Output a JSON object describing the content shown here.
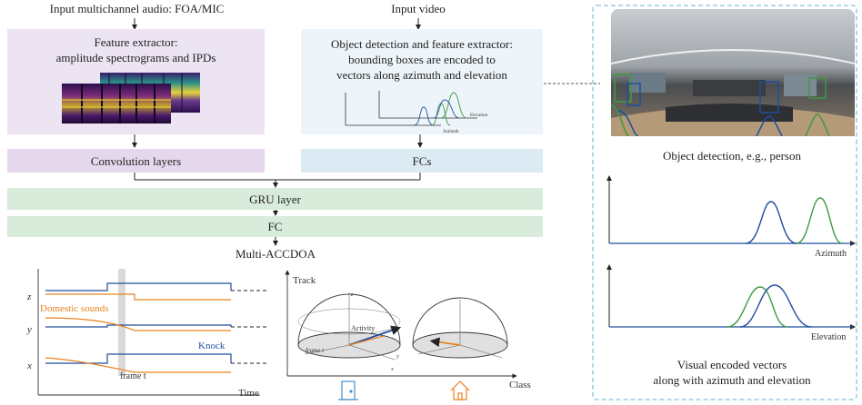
{
  "inputs": {
    "audio_label": "Input multichannel audio: FOA/MIC",
    "video_label": "Input video"
  },
  "audio_branch": {
    "feature_box_line1": "Feature extractor:",
    "feature_box_line2": "amplitude spectrograms and IPDs",
    "conv_label": "Convolution layers"
  },
  "video_branch": {
    "box_line1": "Object detection and feature extractor:",
    "box_line2": "bounding boxes are encoded to",
    "box_line3": "vectors along azimuth and elevation",
    "mini_label_elevation": "Elevation",
    "mini_label_azimuth": "Azimuth",
    "fc_label": "FCs"
  },
  "shared": {
    "gru_label": "GRU layer",
    "fc_label": "FC",
    "output_label": "Multi-ACCDOA"
  },
  "output_left": {
    "axis_z": "z",
    "axis_y": "y",
    "axis_x": "x",
    "domestic_label": "Domestic sounds",
    "knock_label": "Knock",
    "frame_label": "frame t",
    "time_label": "Time"
  },
  "output_right": {
    "track_label": "Track",
    "class_label": "Class",
    "activity_label": "Activity",
    "frame_label": "frame t",
    "sphere_z": "z",
    "sphere_y": "y",
    "sphere_x": "x"
  },
  "right_panel": {
    "detection_caption": "Object detection, e.g., person",
    "azimuth_label": "Azimuth",
    "elevation_label": "Elevation",
    "caption_line1": "Visual encoded vectors",
    "caption_line2": "along with azimuth and elevation"
  },
  "colors": {
    "blue_series": "#1f4e9e",
    "orange_series": "#e8821e",
    "green_series": "#3f9a3f",
    "panel_border": "#9ccbe0"
  },
  "icons": {
    "door": "door-icon",
    "home": "home-icon"
  }
}
